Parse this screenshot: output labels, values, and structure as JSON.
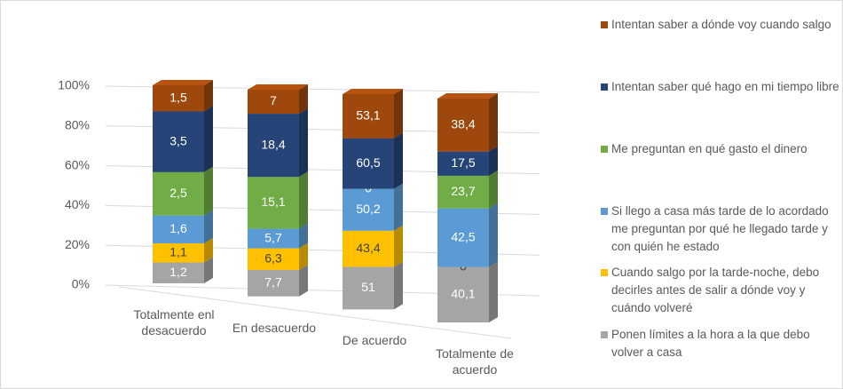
{
  "chart_data": {
    "type": "bar",
    "stacking": "percent",
    "categories": [
      "Totalmente enl desacuerdo",
      "En desacuerdo",
      "De acuerdo",
      "Totalmente de acuerdo"
    ],
    "series": [
      {
        "name": "Ponen límites a la hora a la que debo volver a casa",
        "color": "#a5a5a5",
        "values": [
          1.2,
          7.7,
          51,
          40.1
        ],
        "value_labels": [
          "1,2",
          "7,7",
          "51",
          "40,1"
        ]
      },
      {
        "name": "Cuando salgo por la tarde-noche, debo decirles antes de salir a dónde voy y cuándo volveré",
        "color": "#ffc000",
        "values": [
          1.1,
          6.3,
          43.4,
          0
        ],
        "value_labels": [
          "1,1",
          "6,3",
          "43,4",
          "0"
        ]
      },
      {
        "name": "Si llego a casa más tarde de lo acordado me preguntan por qué he llegado tarde y con quién he estado",
        "color": "#5b9bd5",
        "values": [
          1.6,
          5.7,
          50.2,
          42.5
        ],
        "value_labels": [
          "1,6",
          "5,7",
          "50,2",
          "42,5"
        ]
      },
      {
        "name": "Me preguntan en qué gasto el dinero",
        "color": "#70ad47",
        "values": [
          2.5,
          15.1,
          0,
          23.7
        ],
        "value_labels": [
          "2,5",
          "15,1",
          "0",
          "23,7"
        ]
      },
      {
        "name": "Intentan saber qué hago en mi tiempo libre",
        "color": "#264478",
        "values": [
          3.5,
          18.4,
          60.5,
          17.5
        ],
        "value_labels": [
          "3,5",
          "18,4",
          "60,5",
          "17,5"
        ]
      },
      {
        "name": "Intentan saber a dónde voy cuando salgo",
        "color": "#9e480e",
        "values": [
          1.5,
          7,
          53.1,
          38.4
        ],
        "value_labels": [
          "1,5",
          "7",
          "53,1",
          "38,4"
        ]
      }
    ],
    "ylim": [
      0,
      100
    ],
    "yticks": [
      {
        "value": 0,
        "label": "0%"
      },
      {
        "value": 20,
        "label": "20%"
      },
      {
        "value": 40,
        "label": "40%"
      },
      {
        "value": 60,
        "label": "60%"
      },
      {
        "value": 80,
        "label": "80%"
      },
      {
        "value": 100,
        "label": "100%"
      }
    ],
    "grid": true,
    "legend": "right"
  }
}
